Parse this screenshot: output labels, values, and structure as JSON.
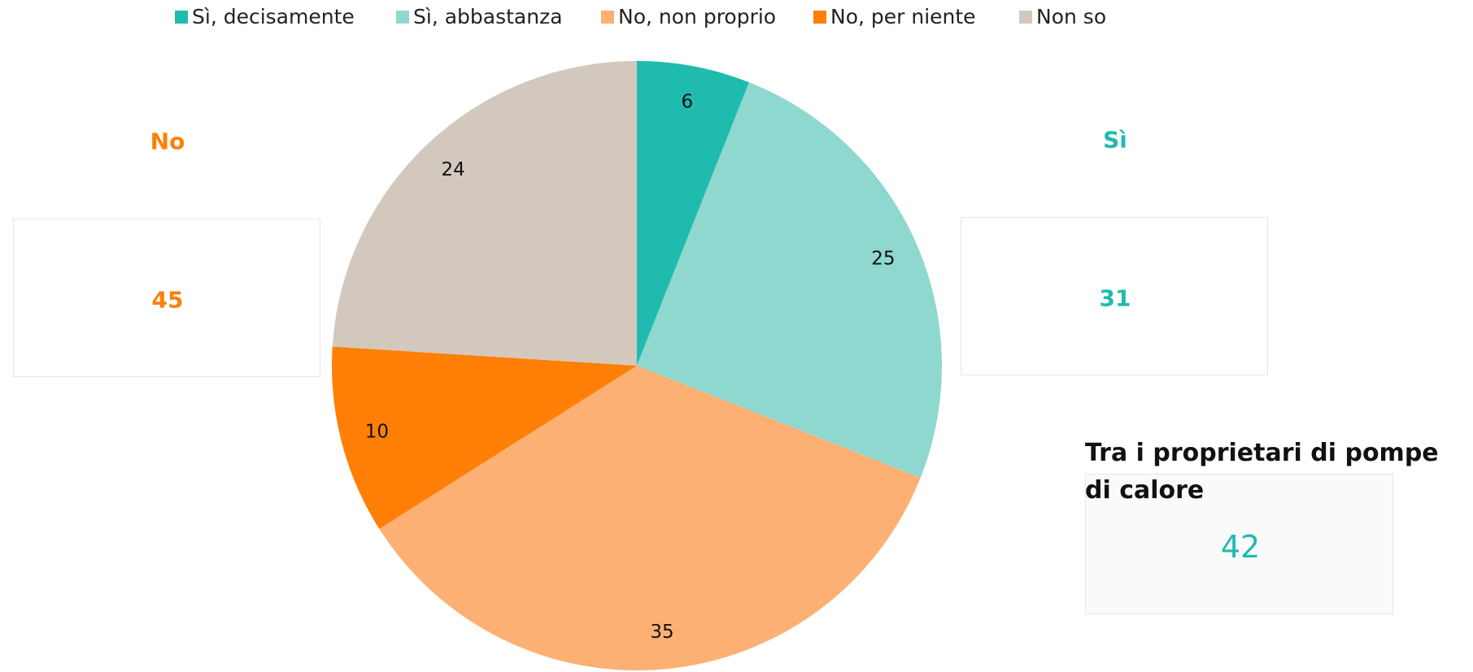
{
  "chart_data": {
    "type": "pie",
    "categories": [
      "Sì, decisamente",
      "Sì, abbastanza",
      "No, non proprio",
      "No, per niente",
      "Non so"
    ],
    "values": [
      6,
      25,
      35,
      10,
      24
    ],
    "colors": [
      "#20bbaf",
      "#8fd8cf",
      "#fdb074",
      "#ff7f07",
      "#d3c8bd"
    ],
    "legend": "top",
    "summaries": [
      {
        "label": "No",
        "value": 45,
        "color": "#ff7f07"
      },
      {
        "label": "Sì",
        "value": 31,
        "color": "#20bbaf"
      }
    ],
    "note": {
      "label": "Tra i proprietari di pompe di calore",
      "value": 42,
      "color": "#20bbaf"
    }
  }
}
